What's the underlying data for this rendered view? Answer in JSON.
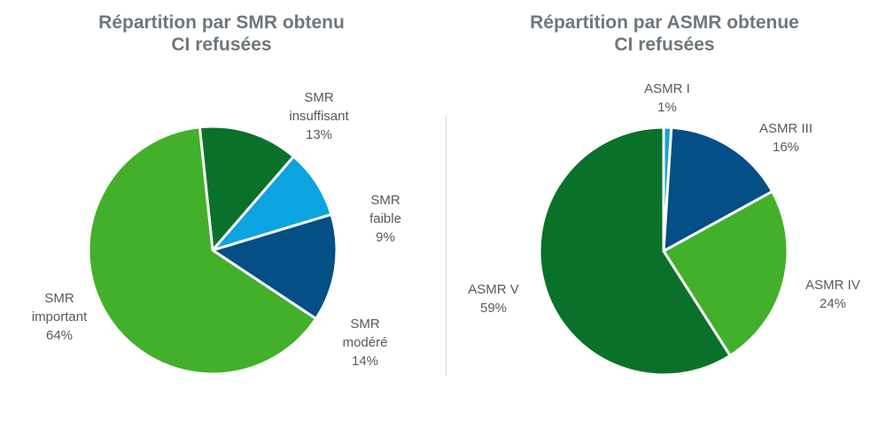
{
  "chart_data": [
    {
      "type": "pie",
      "title_lines": [
        "Répartition par SMR obtenu",
        "CI refusées"
      ],
      "slices": [
        {
          "label": [
            "SMR",
            "insuffisant"
          ],
          "pct_label": "13%",
          "value": 13,
          "color": "#09712a"
        },
        {
          "label": [
            "SMR",
            "faible"
          ],
          "pct_label": "9%",
          "value": 9,
          "color": "#0ba4e0"
        },
        {
          "label": [
            "SMR",
            "modéré"
          ],
          "pct_label": "14%",
          "value": 14,
          "color": "#034f86"
        },
        {
          "label": [
            "SMR",
            "important"
          ],
          "pct_label": "64%",
          "value": 64,
          "color": "#42b02b"
        }
      ]
    },
    {
      "type": "pie",
      "title_lines": [
        "Répartition par ASMR obtenue",
        "CI refusées"
      ],
      "slices": [
        {
          "label": [
            "ASMR I"
          ],
          "pct_label": "1%",
          "value": 1,
          "color": "#1aa0d8"
        },
        {
          "label": [
            "ASMR III"
          ],
          "pct_label": "16%",
          "value": 16,
          "color": "#034f86"
        },
        {
          "label": [
            "ASMR IV"
          ],
          "pct_label": "24%",
          "value": 24,
          "color": "#42b02b"
        },
        {
          "label": [
            "ASMR V"
          ],
          "pct_label": "59%",
          "value": 59,
          "color": "#09712a"
        }
      ]
    }
  ]
}
